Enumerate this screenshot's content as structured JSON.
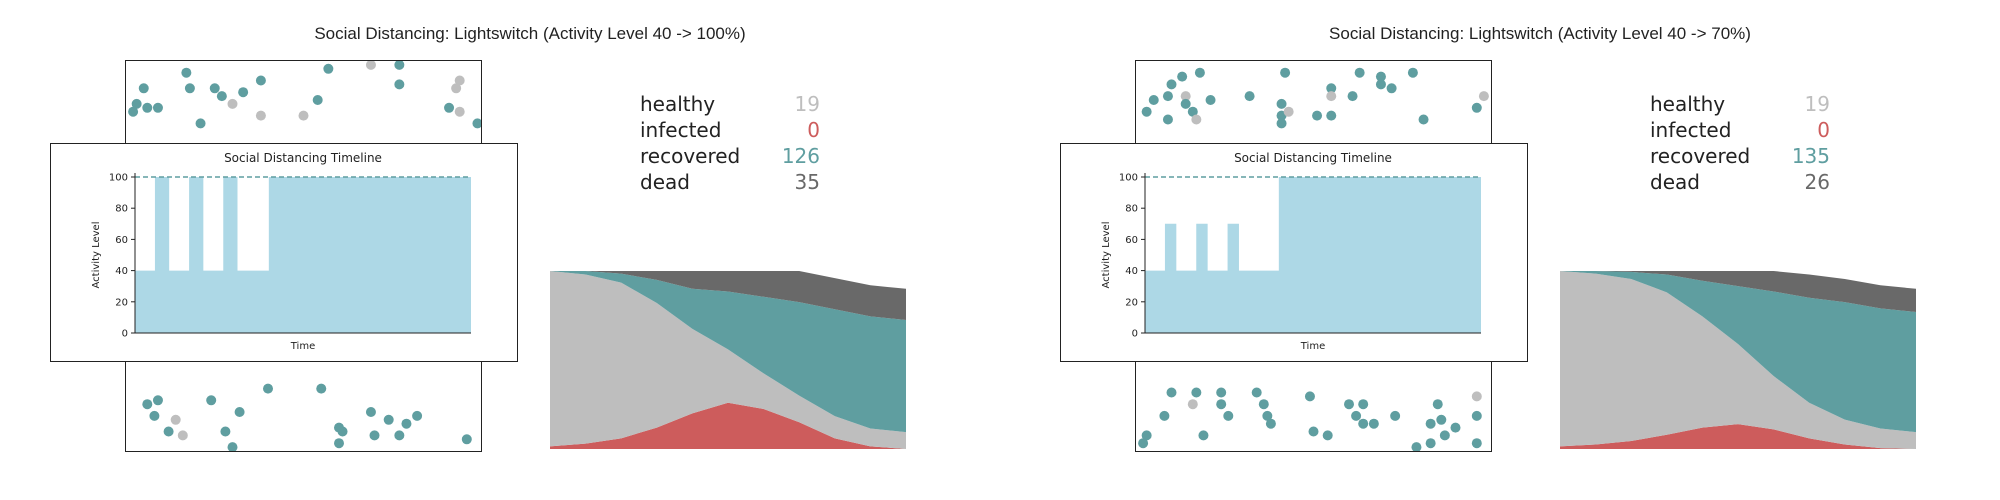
{
  "colors": {
    "healthy": "#bebebe",
    "infected": "#cd5c5c",
    "recovered": "#5f9ea0",
    "dead": "#696969",
    "activity": "#add8e6"
  },
  "chart_data": [
    {
      "type": "area",
      "title": "Social Distancing: Lightswitch (Activity Level 40 -> 100%)",
      "stats": [
        {
          "key": "healthy",
          "label": "healthy",
          "value": 19
        },
        {
          "key": "infected",
          "label": "infected",
          "value": 0
        },
        {
          "key": "recovered",
          "label": "recovered",
          "value": 126
        },
        {
          "key": "dead",
          "label": "dead",
          "value": 35
        }
      ],
      "population": 200,
      "timeline": {
        "title": "Social Distancing Timeline",
        "xlabel": "Time",
        "ylabel": "Activity Level",
        "ylim": [
          0,
          100
        ],
        "yticks": [
          0,
          20,
          40,
          60,
          80,
          100
        ],
        "reference_level": 100,
        "levels": [
          40,
          40,
          40,
          40,
          40,
          40,
          40,
          100,
          100,
          100,
          100,
          100,
          40,
          40,
          40,
          40,
          40,
          40,
          40,
          100,
          100,
          100,
          100,
          100,
          40,
          40,
          40,
          40,
          40,
          40,
          40,
          100,
          100,
          100,
          100,
          100,
          40,
          40,
          40,
          40,
          40,
          40,
          40,
          40,
          40,
          40,
          40,
          100,
          100,
          100,
          100,
          100,
          100,
          100,
          100,
          100,
          100,
          100,
          100,
          100,
          100,
          100,
          100,
          100,
          100,
          100,
          100,
          100,
          100,
          100,
          100,
          100,
          100,
          100,
          100,
          100,
          100,
          100,
          100,
          100,
          100,
          100,
          100,
          100,
          100,
          100,
          100,
          100,
          100,
          100,
          100,
          100,
          100,
          100,
          100,
          100,
          100,
          100,
          100,
          100,
          100,
          100,
          100,
          100,
          100,
          100,
          100,
          100,
          100,
          100,
          100,
          100,
          100,
          100,
          100,
          100,
          100,
          100
        ]
      },
      "stacked_series": {
        "order": [
          "infected",
          "healthy",
          "recovered",
          "dead"
        ],
        "time": [
          0,
          10,
          20,
          30,
          40,
          50,
          60,
          70,
          80,
          90,
          100
        ],
        "infected": [
          3,
          6,
          12,
          24,
          40,
          52,
          45,
          30,
          12,
          3,
          0
        ],
        "healthy": [
          197,
          190,
          175,
          140,
          95,
          60,
          40,
          30,
          25,
          20,
          19
        ],
        "recovered": [
          0,
          4,
          10,
          26,
          45,
          65,
          86,
          105,
          120,
          126,
          126
        ],
        "dead": [
          0,
          0,
          3,
          10,
          20,
          23,
          29,
          35,
          35,
          35,
          35
        ]
      },
      "particles": [
        {
          "x": 0.17,
          "y": 0.03,
          "s": "recovered"
        },
        {
          "x": 0.57,
          "y": 0.02,
          "s": "recovered"
        },
        {
          "x": 0.69,
          "y": 0.01,
          "s": "healthy"
        },
        {
          "x": 0.77,
          "y": 0.01,
          "s": "recovered"
        },
        {
          "x": 0.38,
          "y": 0.05,
          "s": "recovered"
        },
        {
          "x": 0.77,
          "y": 0.06,
          "s": "recovered"
        },
        {
          "x": 0.94,
          "y": 0.05,
          "s": "healthy"
        },
        {
          "x": 0.05,
          "y": 0.07,
          "s": "recovered"
        },
        {
          "x": 0.18,
          "y": 0.07,
          "s": "recovered"
        },
        {
          "x": 0.25,
          "y": 0.07,
          "s": "recovered"
        },
        {
          "x": 0.33,
          "y": 0.08,
          "s": "recovered"
        },
        {
          "x": 0.93,
          "y": 0.07,
          "s": "healthy"
        },
        {
          "x": 0.27,
          "y": 0.09,
          "s": "recovered"
        },
        {
          "x": 0.54,
          "y": 0.1,
          "s": "recovered"
        },
        {
          "x": 0.03,
          "y": 0.11,
          "s": "recovered"
        },
        {
          "x": 0.06,
          "y": 0.12,
          "s": "recovered"
        },
        {
          "x": 0.09,
          "y": 0.12,
          "s": "recovered"
        },
        {
          "x": 0.3,
          "y": 0.11,
          "s": "healthy"
        },
        {
          "x": 0.91,
          "y": 0.12,
          "s": "recovered"
        },
        {
          "x": 0.94,
          "y": 0.13,
          "s": "healthy"
        },
        {
          "x": 0.02,
          "y": 0.13,
          "s": "recovered"
        },
        {
          "x": 0.38,
          "y": 0.14,
          "s": "healthy"
        },
        {
          "x": 0.5,
          "y": 0.14,
          "s": "healthy"
        },
        {
          "x": 0.21,
          "y": 0.16,
          "s": "recovered"
        },
        {
          "x": 0.99,
          "y": 0.16,
          "s": "recovered"
        },
        {
          "x": 0.06,
          "y": 0.88,
          "s": "recovered"
        },
        {
          "x": 0.09,
          "y": 0.87,
          "s": "recovered"
        },
        {
          "x": 0.24,
          "y": 0.87,
          "s": "recovered"
        },
        {
          "x": 0.4,
          "y": 0.84,
          "s": "recovered"
        },
        {
          "x": 0.55,
          "y": 0.84,
          "s": "recovered"
        },
        {
          "x": 0.08,
          "y": 0.91,
          "s": "recovered"
        },
        {
          "x": 0.14,
          "y": 0.92,
          "s": "healthy"
        },
        {
          "x": 0.32,
          "y": 0.9,
          "s": "recovered"
        },
        {
          "x": 0.69,
          "y": 0.9,
          "s": "recovered"
        },
        {
          "x": 0.82,
          "y": 0.91,
          "s": "recovered"
        },
        {
          "x": 0.74,
          "y": 0.92,
          "s": "recovered"
        },
        {
          "x": 0.79,
          "y": 0.93,
          "s": "recovered"
        },
        {
          "x": 0.12,
          "y": 0.95,
          "s": "recovered"
        },
        {
          "x": 0.16,
          "y": 0.96,
          "s": "healthy"
        },
        {
          "x": 0.28,
          "y": 0.95,
          "s": "recovered"
        },
        {
          "x": 0.61,
          "y": 0.95,
          "s": "recovered"
        },
        {
          "x": 0.6,
          "y": 0.94,
          "s": "recovered"
        },
        {
          "x": 0.7,
          "y": 0.96,
          "s": "recovered"
        },
        {
          "x": 0.77,
          "y": 0.96,
          "s": "recovered"
        },
        {
          "x": 0.6,
          "y": 0.98,
          "s": "recovered"
        },
        {
          "x": 0.96,
          "y": 0.97,
          "s": "recovered"
        },
        {
          "x": 0.3,
          "y": 0.99,
          "s": "recovered"
        }
      ]
    },
    {
      "type": "area",
      "title": "Social Distancing: Lightswitch (Activity Level 40 -> 70%)",
      "stats": [
        {
          "key": "healthy",
          "label": "healthy",
          "value": 19
        },
        {
          "key": "infected",
          "label": "infected",
          "value": 0
        },
        {
          "key": "recovered",
          "label": "recovered",
          "value": 135
        },
        {
          "key": "dead",
          "label": "dead",
          "value": 26
        }
      ],
      "population": 200,
      "timeline": {
        "title": "Social Distancing Timeline",
        "xlabel": "Time",
        "ylabel": "Activity Level",
        "ylim": [
          0,
          100
        ],
        "yticks": [
          0,
          20,
          40,
          60,
          80,
          100
        ],
        "reference_level": 100,
        "levels": [
          40,
          40,
          40,
          40,
          40,
          40,
          40,
          70,
          70,
          70,
          70,
          40,
          40,
          40,
          40,
          40,
          40,
          40,
          70,
          70,
          70,
          70,
          40,
          40,
          40,
          40,
          40,
          40,
          40,
          70,
          70,
          70,
          70,
          40,
          40,
          40,
          40,
          40,
          40,
          40,
          40,
          40,
          40,
          40,
          40,
          40,
          40,
          100,
          100,
          100,
          100,
          100,
          100,
          100,
          100,
          100,
          100,
          100,
          100,
          100,
          100,
          100,
          100,
          100,
          100,
          100,
          100,
          100,
          100,
          100,
          100,
          100,
          100,
          100,
          100,
          100,
          100,
          100,
          100,
          100,
          100,
          100,
          100,
          100,
          100,
          100,
          100,
          100,
          100,
          100,
          100,
          100,
          100,
          100,
          100,
          100,
          100,
          100,
          100,
          100,
          100,
          100,
          100,
          100,
          100,
          100,
          100,
          100,
          100,
          100,
          100,
          100,
          100,
          100,
          100,
          100,
          100,
          100
        ]
      },
      "stacked_series": {
        "order": [
          "infected",
          "healthy",
          "recovered",
          "dead"
        ],
        "time": [
          0,
          10,
          20,
          30,
          40,
          50,
          60,
          70,
          80,
          90,
          100
        ],
        "infected": [
          3,
          5,
          9,
          16,
          24,
          28,
          22,
          12,
          5,
          1,
          0
        ],
        "healthy": [
          197,
          192,
          182,
          160,
          125,
          90,
          60,
          40,
          28,
          22,
          19
        ],
        "recovered": [
          0,
          3,
          8,
          20,
          40,
          65,
          95,
          118,
          132,
          135,
          135
        ],
        "dead": [
          0,
          0,
          1,
          4,
          11,
          17,
          23,
          26,
          26,
          26,
          26
        ]
      },
      "particles": [
        {
          "x": 0.13,
          "y": 0.04,
          "s": "recovered"
        },
        {
          "x": 0.18,
          "y": 0.03,
          "s": "recovered"
        },
        {
          "x": 0.42,
          "y": 0.03,
          "s": "recovered"
        },
        {
          "x": 0.63,
          "y": 0.03,
          "s": "recovered"
        },
        {
          "x": 0.69,
          "y": 0.04,
          "s": "recovered"
        },
        {
          "x": 0.78,
          "y": 0.03,
          "s": "recovered"
        },
        {
          "x": 0.1,
          "y": 0.06,
          "s": "recovered"
        },
        {
          "x": 0.55,
          "y": 0.07,
          "s": "recovered"
        },
        {
          "x": 0.69,
          "y": 0.06,
          "s": "recovered"
        },
        {
          "x": 0.72,
          "y": 0.07,
          "s": "recovered"
        },
        {
          "x": 0.09,
          "y": 0.09,
          "s": "recovered"
        },
        {
          "x": 0.14,
          "y": 0.09,
          "s": "healthy"
        },
        {
          "x": 0.32,
          "y": 0.09,
          "s": "recovered"
        },
        {
          "x": 0.55,
          "y": 0.09,
          "s": "healthy"
        },
        {
          "x": 0.61,
          "y": 0.09,
          "s": "recovered"
        },
        {
          "x": 0.98,
          "y": 0.09,
          "s": "healthy"
        },
        {
          "x": 0.05,
          "y": 0.1,
          "s": "recovered"
        },
        {
          "x": 0.21,
          "y": 0.1,
          "s": "recovered"
        },
        {
          "x": 0.14,
          "y": 0.11,
          "s": "recovered"
        },
        {
          "x": 0.41,
          "y": 0.11,
          "s": "recovered"
        },
        {
          "x": 0.96,
          "y": 0.12,
          "s": "recovered"
        },
        {
          "x": 0.03,
          "y": 0.13,
          "s": "recovered"
        },
        {
          "x": 0.16,
          "y": 0.13,
          "s": "recovered"
        },
        {
          "x": 0.41,
          "y": 0.14,
          "s": "recovered"
        },
        {
          "x": 0.43,
          "y": 0.13,
          "s": "healthy"
        },
        {
          "x": 0.51,
          "y": 0.14,
          "s": "recovered"
        },
        {
          "x": 0.55,
          "y": 0.14,
          "s": "recovered"
        },
        {
          "x": 0.09,
          "y": 0.15,
          "s": "recovered"
        },
        {
          "x": 0.17,
          "y": 0.15,
          "s": "healthy"
        },
        {
          "x": 0.81,
          "y": 0.15,
          "s": "recovered"
        },
        {
          "x": 0.41,
          "y": 0.16,
          "s": "recovered"
        },
        {
          "x": 0.1,
          "y": 0.85,
          "s": "recovered"
        },
        {
          "x": 0.17,
          "y": 0.85,
          "s": "recovered"
        },
        {
          "x": 0.24,
          "y": 0.85,
          "s": "recovered"
        },
        {
          "x": 0.34,
          "y": 0.85,
          "s": "recovered"
        },
        {
          "x": 0.49,
          "y": 0.86,
          "s": "recovered"
        },
        {
          "x": 0.6,
          "y": 0.88,
          "s": "recovered"
        },
        {
          "x": 0.64,
          "y": 0.88,
          "s": "recovered"
        },
        {
          "x": 0.85,
          "y": 0.88,
          "s": "recovered"
        },
        {
          "x": 0.96,
          "y": 0.86,
          "s": "healthy"
        },
        {
          "x": 0.24,
          "y": 0.88,
          "s": "recovered"
        },
        {
          "x": 0.16,
          "y": 0.88,
          "s": "healthy"
        },
        {
          "x": 0.36,
          "y": 0.88,
          "s": "recovered"
        },
        {
          "x": 0.08,
          "y": 0.91,
          "s": "recovered"
        },
        {
          "x": 0.26,
          "y": 0.91,
          "s": "recovered"
        },
        {
          "x": 0.37,
          "y": 0.91,
          "s": "recovered"
        },
        {
          "x": 0.62,
          "y": 0.91,
          "s": "recovered"
        },
        {
          "x": 0.73,
          "y": 0.91,
          "s": "recovered"
        },
        {
          "x": 0.86,
          "y": 0.92,
          "s": "recovered"
        },
        {
          "x": 0.96,
          "y": 0.91,
          "s": "recovered"
        },
        {
          "x": 0.38,
          "y": 0.93,
          "s": "recovered"
        },
        {
          "x": 0.64,
          "y": 0.93,
          "s": "recovered"
        },
        {
          "x": 0.67,
          "y": 0.93,
          "s": "recovered"
        },
        {
          "x": 0.83,
          "y": 0.93,
          "s": "recovered"
        },
        {
          "x": 0.5,
          "y": 0.95,
          "s": "recovered"
        },
        {
          "x": 0.9,
          "y": 0.94,
          "s": "recovered"
        },
        {
          "x": 0.03,
          "y": 0.96,
          "s": "recovered"
        },
        {
          "x": 0.19,
          "y": 0.96,
          "s": "recovered"
        },
        {
          "x": 0.54,
          "y": 0.96,
          "s": "recovered"
        },
        {
          "x": 0.87,
          "y": 0.96,
          "s": "recovered"
        },
        {
          "x": 0.02,
          "y": 0.98,
          "s": "recovered"
        },
        {
          "x": 0.79,
          "y": 0.99,
          "s": "recovered"
        },
        {
          "x": 0.83,
          "y": 0.98,
          "s": "recovered"
        },
        {
          "x": 0.96,
          "y": 0.98,
          "s": "recovered"
        }
      ]
    }
  ]
}
